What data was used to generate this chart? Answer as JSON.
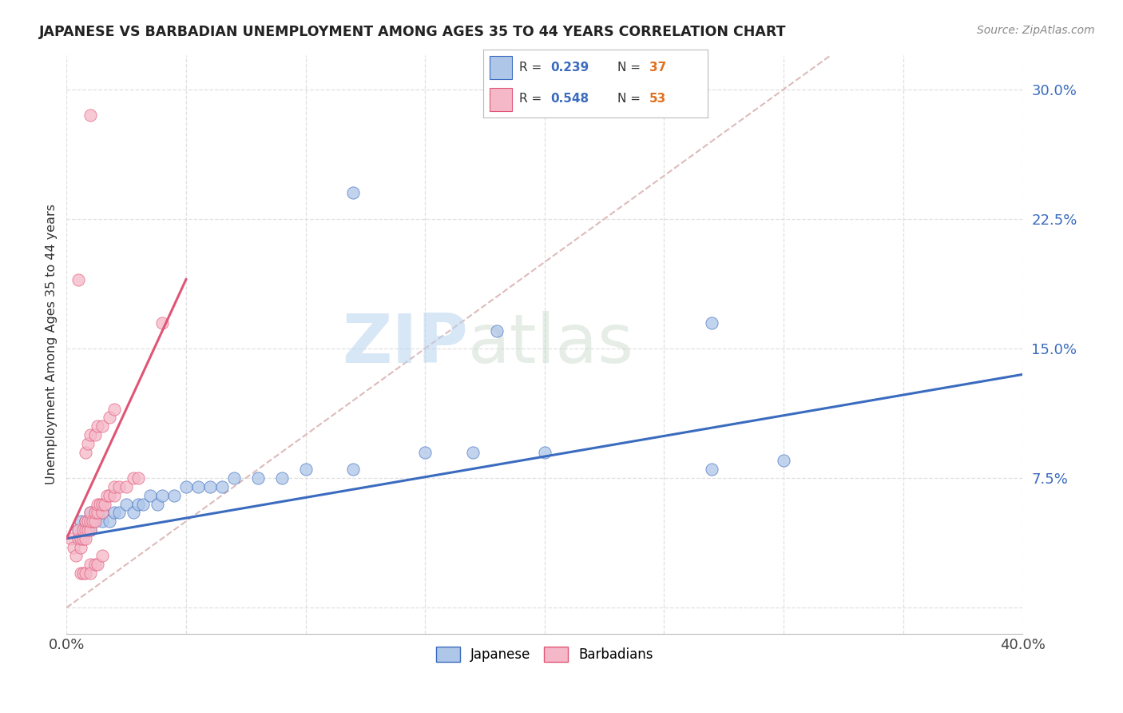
{
  "title": "JAPANESE VS BARBADIAN UNEMPLOYMENT AMONG AGES 35 TO 44 YEARS CORRELATION CHART",
  "source": "Source: ZipAtlas.com",
  "ylabel": "Unemployment Among Ages 35 to 44 years",
  "xlim": [
    0.0,
    0.4
  ],
  "ylim": [
    -0.015,
    0.32
  ],
  "xticks": [
    0.0,
    0.05,
    0.1,
    0.15,
    0.2,
    0.25,
    0.3,
    0.35,
    0.4
  ],
  "ytick_positions": [
    0.0,
    0.075,
    0.15,
    0.225,
    0.3
  ],
  "yticklabels": [
    "",
    "7.5%",
    "15.0%",
    "22.5%",
    "30.0%"
  ],
  "background_color": "#ffffff",
  "grid_color": "#e0e0e0",
  "japanese_color": "#aec6e8",
  "barbadian_color": "#f5b8c8",
  "japanese_line_color": "#3a6bbf",
  "barbadian_line_color": "#e05575",
  "diagonal_color": "#ddbbbb",
  "legend_R_color": "#3a6bbf",
  "legend_N_color": "#e07020",
  "japanese_R": "0.239",
  "japanese_N": "37",
  "barbadian_R": "0.548",
  "barbadian_N": "53",
  "watermark_zip": "ZIP",
  "watermark_atlas": "atlas",
  "japanese_points": [
    [
      0.005,
      0.045
    ],
    [
      0.006,
      0.05
    ],
    [
      0.008,
      0.05
    ],
    [
      0.01,
      0.045
    ],
    [
      0.01,
      0.055
    ],
    [
      0.012,
      0.05
    ],
    [
      0.012,
      0.055
    ],
    [
      0.015,
      0.05
    ],
    [
      0.015,
      0.055
    ],
    [
      0.018,
      0.05
    ],
    [
      0.02,
      0.055
    ],
    [
      0.022,
      0.055
    ],
    [
      0.025,
      0.06
    ],
    [
      0.028,
      0.055
    ],
    [
      0.03,
      0.06
    ],
    [
      0.032,
      0.06
    ],
    [
      0.035,
      0.065
    ],
    [
      0.038,
      0.06
    ],
    [
      0.04,
      0.065
    ],
    [
      0.045,
      0.065
    ],
    [
      0.05,
      0.07
    ],
    [
      0.055,
      0.07
    ],
    [
      0.06,
      0.07
    ],
    [
      0.065,
      0.07
    ],
    [
      0.07,
      0.075
    ],
    [
      0.08,
      0.075
    ],
    [
      0.09,
      0.075
    ],
    [
      0.1,
      0.08
    ],
    [
      0.12,
      0.08
    ],
    [
      0.15,
      0.09
    ],
    [
      0.17,
      0.09
    ],
    [
      0.2,
      0.09
    ],
    [
      0.27,
      0.08
    ],
    [
      0.3,
      0.085
    ],
    [
      0.18,
      0.16
    ],
    [
      0.27,
      0.165
    ],
    [
      0.12,
      0.24
    ]
  ],
  "barbadian_points": [
    [
      0.002,
      0.04
    ],
    [
      0.003,
      0.035
    ],
    [
      0.004,
      0.03
    ],
    [
      0.005,
      0.04
    ],
    [
      0.005,
      0.045
    ],
    [
      0.006,
      0.035
    ],
    [
      0.006,
      0.04
    ],
    [
      0.007,
      0.04
    ],
    [
      0.007,
      0.045
    ],
    [
      0.008,
      0.04
    ],
    [
      0.008,
      0.045
    ],
    [
      0.008,
      0.05
    ],
    [
      0.009,
      0.045
    ],
    [
      0.009,
      0.05
    ],
    [
      0.01,
      0.045
    ],
    [
      0.01,
      0.05
    ],
    [
      0.01,
      0.055
    ],
    [
      0.011,
      0.05
    ],
    [
      0.012,
      0.05
    ],
    [
      0.012,
      0.055
    ],
    [
      0.013,
      0.055
    ],
    [
      0.013,
      0.06
    ],
    [
      0.014,
      0.06
    ],
    [
      0.015,
      0.055
    ],
    [
      0.015,
      0.06
    ],
    [
      0.016,
      0.06
    ],
    [
      0.017,
      0.065
    ],
    [
      0.018,
      0.065
    ],
    [
      0.02,
      0.065
    ],
    [
      0.02,
      0.07
    ],
    [
      0.022,
      0.07
    ],
    [
      0.025,
      0.07
    ],
    [
      0.028,
      0.075
    ],
    [
      0.03,
      0.075
    ],
    [
      0.006,
      0.02
    ],
    [
      0.007,
      0.02
    ],
    [
      0.008,
      0.02
    ],
    [
      0.01,
      0.025
    ],
    [
      0.01,
      0.02
    ],
    [
      0.012,
      0.025
    ],
    [
      0.013,
      0.025
    ],
    [
      0.015,
      0.03
    ],
    [
      0.008,
      0.09
    ],
    [
      0.009,
      0.095
    ],
    [
      0.01,
      0.1
    ],
    [
      0.012,
      0.1
    ],
    [
      0.013,
      0.105
    ],
    [
      0.015,
      0.105
    ],
    [
      0.018,
      0.11
    ],
    [
      0.02,
      0.115
    ],
    [
      0.04,
      0.165
    ],
    [
      0.005,
      0.19
    ],
    [
      0.01,
      0.285
    ]
  ],
  "jp_line": [
    [
      0.0,
      0.04
    ],
    [
      0.4,
      0.135
    ]
  ],
  "bb_line": [
    [
      0.0,
      0.04
    ],
    [
      0.05,
      0.19
    ]
  ]
}
